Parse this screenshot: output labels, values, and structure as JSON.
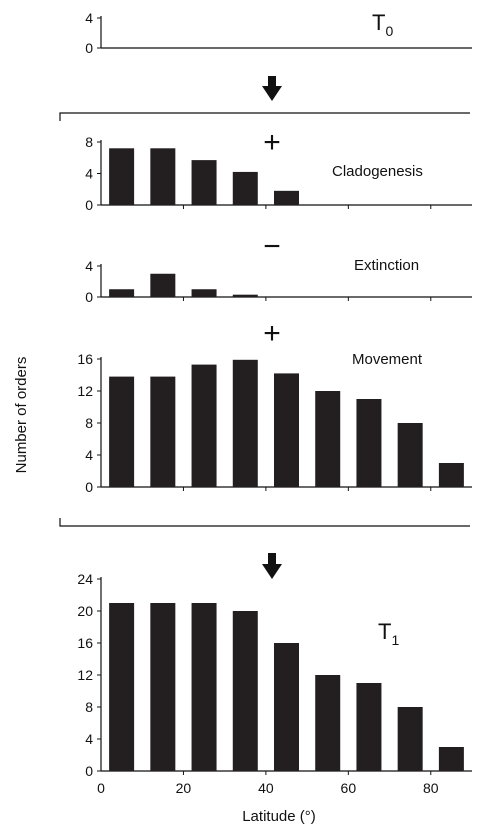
{
  "chart_data": [
    {
      "id": "t0",
      "type": "bar",
      "label": "T",
      "label_sub": "0",
      "sign": "",
      "ylim": [
        0,
        4
      ],
      "yticks": [
        0,
        4
      ],
      "x": [],
      "values": []
    },
    {
      "id": "cladogenesis",
      "type": "bar",
      "label": "Cladogenesis",
      "sign": "+",
      "ylim": [
        0,
        8
      ],
      "yticks": [
        0,
        4,
        8
      ],
      "x": [
        5,
        15,
        25,
        35,
        45
      ],
      "values": [
        7.2,
        7.2,
        5.7,
        4.2,
        1.8
      ]
    },
    {
      "id": "extinction",
      "type": "bar",
      "label": "Extinction",
      "sign": "−",
      "ylim": [
        0,
        4
      ],
      "yticks": [
        0,
        4
      ],
      "x": [
        5,
        15,
        25,
        35
      ],
      "values": [
        1.0,
        3.0,
        1.0,
        0.3
      ]
    },
    {
      "id": "movement",
      "type": "bar",
      "label": "Movement",
      "sign": "+",
      "ylim": [
        0,
        16
      ],
      "yticks": [
        0,
        4,
        8,
        12,
        16
      ],
      "x": [
        5,
        15,
        25,
        35,
        45,
        55,
        65,
        75,
        85
      ],
      "values": [
        13.8,
        13.8,
        15.3,
        15.9,
        14.2,
        12.0,
        11.0,
        8.0,
        3.0
      ]
    },
    {
      "id": "t1",
      "type": "bar",
      "label": "T",
      "label_sub": "1",
      "sign": "",
      "ylim": [
        0,
        24
      ],
      "yticks": [
        0,
        4,
        8,
        12,
        16,
        20,
        24
      ],
      "x": [
        5,
        15,
        25,
        35,
        45,
        55,
        65,
        75,
        85
      ],
      "values": [
        21,
        21,
        21,
        20,
        16,
        12,
        11,
        8,
        3
      ]
    }
  ],
  "axes": {
    "xlim": [
      0,
      90
    ],
    "xticks": [
      0,
      20,
      40,
      60,
      80
    ],
    "xlabel": "Latitude (°)",
    "ylabel": "Number of orders"
  },
  "colors": {
    "bar": "#231f20",
    "axis": "#111111"
  },
  "icons": [
    "down-arrow-icon",
    "down-arrow-icon"
  ]
}
